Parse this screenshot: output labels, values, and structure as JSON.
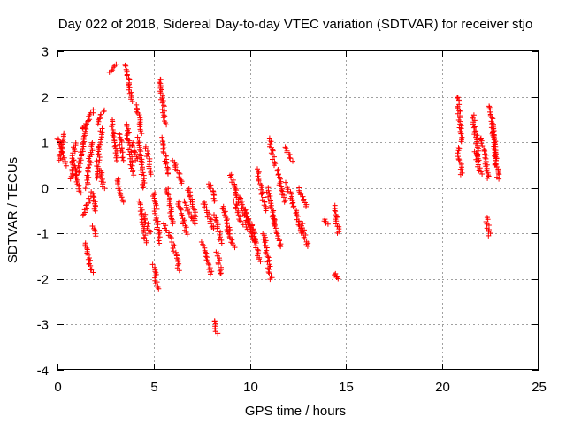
{
  "chart_data": {
    "type": "scatter",
    "title": "Day 022 of 2018, Sidereal Day-to-day VTEC variation (SDTVAR) for receiver stjo",
    "xlabel": "GPS time / hours",
    "ylabel": "SDTVAR / TECUs",
    "xlim": [
      0,
      25
    ],
    "ylim": [
      -4,
      3
    ],
    "xticks": [
      0,
      5,
      10,
      15,
      20,
      25
    ],
    "yticks": [
      -4,
      -3,
      -2,
      -1,
      0,
      1,
      2,
      3
    ],
    "grid": true,
    "marker": "+",
    "color": "#ff0000",
    "segments": [
      {
        "x": [
          0.05,
          0.4
        ],
        "y": [
          1.1,
          0.5
        ]
      },
      {
        "x": [
          0.1,
          0.35
        ],
        "y": [
          0.6,
          1.2
        ]
      },
      {
        "x": [
          0.7,
          0.9
        ],
        "y": [
          0.2,
          1.0
        ]
      },
      {
        "x": [
          0.8,
          1.2
        ],
        "y": [
          0.6,
          -0.1
        ]
      },
      {
        "x": [
          1.0,
          1.5
        ],
        "y": [
          0.2,
          1.4
        ]
      },
      {
        "x": [
          1.3,
          1.9
        ],
        "y": [
          1.3,
          1.7
        ]
      },
      {
        "x": [
          1.5,
          1.8
        ],
        "y": [
          0.0,
          1.0
        ]
      },
      {
        "x": [
          1.3,
          1.7
        ],
        "y": [
          -0.6,
          -0.2
        ]
      },
      {
        "x": [
          1.4,
          1.8
        ],
        "y": [
          -1.2,
          -1.85
        ]
      },
      {
        "x": [
          1.8,
          2.0
        ],
        "y": [
          -0.1,
          -0.5
        ]
      },
      {
        "x": [
          1.85,
          1.95
        ],
        "y": [
          -0.85,
          -1.05
        ]
      },
      {
        "x": [
          2.0,
          2.3
        ],
        "y": [
          0.2,
          1.3
        ]
      },
      {
        "x": [
          2.1,
          2.4
        ],
        "y": [
          1.4,
          1.7
        ]
      },
      {
        "x": [
          2.2,
          2.4
        ],
        "y": [
          0.4,
          0.0
        ]
      },
      {
        "x": [
          2.7,
          3.0
        ],
        "y": [
          2.55,
          2.7
        ]
      },
      {
        "x": [
          2.8,
          3.1
        ],
        "y": [
          1.5,
          0.6
        ]
      },
      {
        "x": [
          3.1,
          3.4
        ],
        "y": [
          0.2,
          -0.3
        ]
      },
      {
        "x": [
          3.2,
          3.4
        ],
        "y": [
          1.2,
          0.6
        ]
      },
      {
        "x": [
          3.5,
          3.9
        ],
        "y": [
          2.7,
          1.9
        ]
      },
      {
        "x": [
          3.6,
          3.9
        ],
        "y": [
          1.4,
          0.3
        ]
      },
      {
        "x": [
          3.9,
          4.1
        ],
        "y": [
          1.0,
          0.6
        ]
      },
      {
        "x": [
          4.1,
          4.4
        ],
        "y": [
          1.8,
          1.2
        ]
      },
      {
        "x": [
          4.2,
          4.5
        ],
        "y": [
          1.1,
          0.0
        ]
      },
      {
        "x": [
          4.3,
          4.6
        ],
        "y": [
          -0.3,
          -1.2
        ]
      },
      {
        "x": [
          4.5,
          4.8
        ],
        "y": [
          -0.6,
          -1.0
        ]
      },
      {
        "x": [
          4.6,
          4.9
        ],
        "y": [
          0.9,
          0.3
        ]
      },
      {
        "x": [
          5.0,
          5.2
        ],
        "y": [
          -1.7,
          -2.2
        ]
      },
      {
        "x": [
          5.0,
          5.3
        ],
        "y": [
          -0.1,
          -1.2
        ]
      },
      {
        "x": [
          5.3,
          5.6
        ],
        "y": [
          2.4,
          1.4
        ]
      },
      {
        "x": [
          5.4,
          5.8
        ],
        "y": [
          1.1,
          0.3
        ]
      },
      {
        "x": [
          5.5,
          5.9
        ],
        "y": [
          -0.8,
          -1.1
        ]
      },
      {
        "x": [
          5.7,
          6.0
        ],
        "y": [
          0.0,
          -0.8
        ]
      },
      {
        "x": [
          6.0,
          6.3
        ],
        "y": [
          -1.2,
          -1.8
        ]
      },
      {
        "x": [
          6.0,
          6.5
        ],
        "y": [
          0.6,
          0.1
        ]
      },
      {
        "x": [
          6.3,
          6.7
        ],
        "y": [
          -0.3,
          -1.0
        ]
      },
      {
        "x": [
          6.6,
          7.1
        ],
        "y": [
          -0.3,
          -0.8
        ]
      },
      {
        "x": [
          6.8,
          7.2
        ],
        "y": [
          0.0,
          -0.7
        ]
      },
      {
        "x": [
          7.5,
          8.0
        ],
        "y": [
          -1.2,
          -1.9
        ]
      },
      {
        "x": [
          7.6,
          8.1
        ],
        "y": [
          -0.3,
          -0.9
        ]
      },
      {
        "x": [
          7.9,
          8.2
        ],
        "y": [
          0.1,
          -0.3
        ]
      },
      {
        "x": [
          8.2,
          8.5
        ],
        "y": [
          -0.6,
          -1.2
        ]
      },
      {
        "x": [
          8.3,
          8.5
        ],
        "y": [
          -1.4,
          -1.9
        ]
      },
      {
        "x": [
          8.1,
          8.3
        ],
        "y": [
          -2.9,
          -3.2
        ]
      },
      {
        "x": [
          8.6,
          9.0
        ],
        "y": [
          -0.4,
          -1.0
        ]
      },
      {
        "x": [
          8.8,
          9.2
        ],
        "y": [
          -0.9,
          -1.3
        ]
      },
      {
        "x": [
          9.0,
          9.4
        ],
        "y": [
          0.3,
          -0.3
        ]
      },
      {
        "x": [
          9.2,
          9.6
        ],
        "y": [
          -0.3,
          -0.8
        ]
      },
      {
        "x": [
          9.5,
          9.9
        ],
        "y": [
          -0.2,
          -0.9
        ]
      },
      {
        "x": [
          9.8,
          10.2
        ],
        "y": [
          -0.5,
          -1.2
        ]
      },
      {
        "x": [
          10.1,
          10.5
        ],
        "y": [
          -0.8,
          -1.6
        ]
      },
      {
        "x": [
          10.4,
          10.8
        ],
        "y": [
          0.4,
          -0.5
        ]
      },
      {
        "x": [
          10.7,
          11.1
        ],
        "y": [
          -1.0,
          -2.0
        ]
      },
      {
        "x": [
          10.9,
          11.3
        ],
        "y": [
          0.0,
          -0.8
        ]
      },
      {
        "x": [
          11.0,
          11.3
        ],
        "y": [
          1.1,
          0.5
        ]
      },
      {
        "x": [
          11.2,
          11.6
        ],
        "y": [
          -0.6,
          -1.3
        ]
      },
      {
        "x": [
          11.4,
          11.8
        ],
        "y": [
          0.4,
          -0.3
        ]
      },
      {
        "x": [
          11.8,
          12.2
        ],
        "y": [
          0.9,
          0.6
        ]
      },
      {
        "x": [
          11.9,
          12.3
        ],
        "y": [
          0.1,
          -0.4
        ]
      },
      {
        "x": [
          12.3,
          12.7
        ],
        "y": [
          -0.4,
          -1.0
        ]
      },
      {
        "x": [
          12.5,
          12.9
        ],
        "y": [
          0.0,
          -0.4
        ]
      },
      {
        "x": [
          12.7,
          13.0
        ],
        "y": [
          -0.8,
          -1.3
        ]
      },
      {
        "x": [
          13.9,
          14.0
        ],
        "y": [
          -0.7,
          -0.8
        ]
      },
      {
        "x": [
          14.4,
          14.6
        ],
        "y": [
          -0.4,
          -1.0
        ]
      },
      {
        "x": [
          14.4,
          14.6
        ],
        "y": [
          -1.9,
          -2.0
        ]
      },
      {
        "x": [
          20.8,
          21.0
        ],
        "y": [
          2.0,
          1.0
        ]
      },
      {
        "x": [
          20.8,
          21.0
        ],
        "y": [
          0.9,
          0.3
        ]
      },
      {
        "x": [
          21.6,
          21.9
        ],
        "y": [
          1.6,
          0.6
        ]
      },
      {
        "x": [
          21.7,
          22.0
        ],
        "y": [
          0.8,
          0.3
        ]
      },
      {
        "x": [
          22.0,
          22.2
        ],
        "y": [
          1.1,
          0.8
        ]
      },
      {
        "x": [
          22.2,
          22.4
        ],
        "y": [
          0.8,
          0.2
        ]
      },
      {
        "x": [
          22.3,
          22.45
        ],
        "y": [
          -0.65,
          -1.05
        ]
      },
      {
        "x": [
          22.5,
          22.8
        ],
        "y": [
          1.8,
          0.5
        ]
      },
      {
        "x": [
          22.6,
          22.9
        ],
        "y": [
          1.4,
          0.2
        ]
      }
    ]
  }
}
